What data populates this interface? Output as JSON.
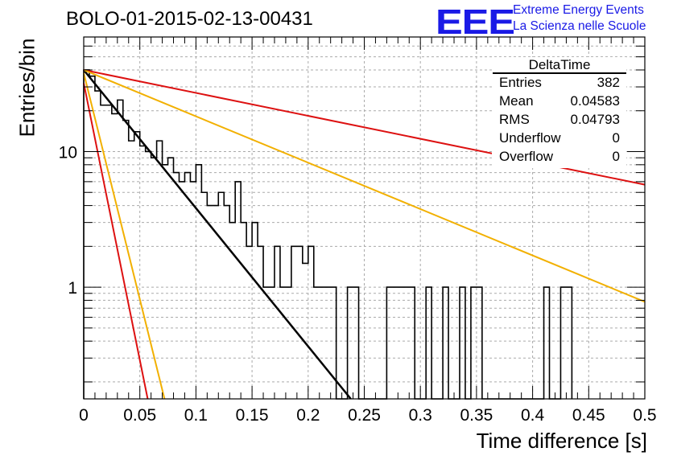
{
  "title": "BOLO-01-2015-02-13-00431",
  "logo": {
    "mark": "EEE",
    "line1": "Extreme Energy Events",
    "line2": "La Scienza nelle Scuole",
    "color": "#1a1ae6"
  },
  "stats": {
    "name": "DeltaTime",
    "rows": [
      {
        "label": "Entries",
        "value": "382"
      },
      {
        "label": "Mean",
        "value": "0.04583"
      },
      {
        "label": "RMS",
        "value": "0.04793"
      },
      {
        "label": "Underflow",
        "value": "0"
      },
      {
        "label": "Overflow",
        "value": "0"
      }
    ]
  },
  "chart_data": {
    "type": "line",
    "xlabel": "Time difference [s]",
    "ylabel": "Entries/bin",
    "xlim": [
      0,
      0.5
    ],
    "ylim": [
      0.15,
      70
    ],
    "yscale": "log",
    "grid": true,
    "xticks": [
      0,
      0.05,
      0.1,
      0.15,
      0.2,
      0.25,
      0.3,
      0.35,
      0.4,
      0.45,
      0.5
    ],
    "xtick_labels": [
      "0",
      "0.05",
      "0.1",
      "0.15",
      "0.2",
      "0.25",
      "0.3",
      "0.35",
      "0.4",
      "0.45",
      "0.5"
    ],
    "ytick_labels": [
      {
        "value": 1,
        "label": "1"
      },
      {
        "value": 10,
        "label": "10"
      }
    ],
    "histogram": {
      "bin_width": 0.005,
      "color": "#000000",
      "values": [
        40,
        36,
        28,
        22,
        22,
        19,
        24,
        17,
        12,
        14,
        11,
        10,
        9,
        12,
        8,
        9,
        7,
        6,
        7,
        6,
        8,
        5,
        4,
        4,
        5,
        4,
        3,
        6,
        3,
        2,
        3,
        2,
        1,
        1,
        2,
        1,
        1,
        2,
        2,
        1.5,
        2,
        1,
        1,
        1,
        1,
        0.1,
        0.1,
        1,
        1,
        0.1,
        0.1,
        0.1,
        0.1,
        0.1,
        1,
        1,
        1,
        1,
        1,
        0.1,
        0.1,
        1,
        0.1,
        0.1,
        1,
        0.1,
        0.1,
        1,
        0.1,
        1,
        1,
        0.1,
        0.1,
        0.1,
        0.1,
        0.1,
        0.1,
        0.1,
        0.1,
        0.1,
        0.1,
        0.1,
        1,
        0.1,
        0.1,
        1,
        1
      ]
    },
    "series": [
      {
        "color": "#000000",
        "width": 2.5,
        "points": [
          [
            0,
            40
          ],
          [
            0.238,
            0.15
          ]
        ]
      },
      {
        "color": "#dd1111",
        "width": 2,
        "points": [
          [
            0,
            40
          ],
          [
            0.5,
            5.7
          ]
        ]
      },
      {
        "color": "#dd1111",
        "width": 2,
        "points": [
          [
            0,
            32
          ],
          [
            0.057,
            0.15
          ]
        ]
      },
      {
        "color": "#f2b000",
        "width": 2,
        "points": [
          [
            0,
            40
          ],
          [
            0.5,
            0.78
          ]
        ]
      },
      {
        "color": "#f2b000",
        "width": 2,
        "points": [
          [
            0,
            38
          ],
          [
            0.072,
            0.15
          ]
        ]
      }
    ]
  }
}
